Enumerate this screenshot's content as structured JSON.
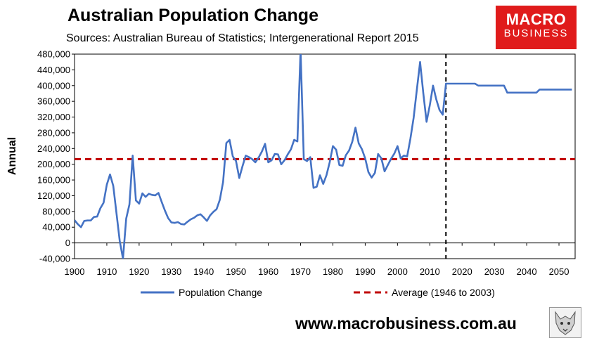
{
  "header": {
    "title": "Australian Population Change",
    "subtitle": "Sources: Australian Bureau of Statistics; Intergenerational Report 2015"
  },
  "logo": {
    "line1": "MACRO",
    "line2": "BUSINESS",
    "color": "#e01b1b"
  },
  "footer": {
    "url": "www.macrobusiness.com.au",
    "icon": "wolf-logo-icon"
  },
  "chart_data": {
    "type": "line",
    "title": "Australian Population Change",
    "xlabel": "",
    "ylabel": "Annual",
    "xlim": [
      1900,
      2055
    ],
    "ylim": [
      -40000,
      480000
    ],
    "x_ticks": [
      1900,
      1910,
      1920,
      1930,
      1940,
      1950,
      1960,
      1970,
      1980,
      1990,
      2000,
      2010,
      2020,
      2030,
      2040,
      2050
    ],
    "y_ticks": [
      -40000,
      0,
      40000,
      80000,
      120000,
      160000,
      200000,
      240000,
      280000,
      320000,
      360000,
      400000,
      440000,
      480000
    ],
    "y_tick_labels": [
      "-40,000",
      "0",
      "40,000",
      "80,000",
      "120,000",
      "160,000",
      "200,000",
      "240,000",
      "280,000",
      "320,000",
      "360,000",
      "400,000",
      "440,000",
      "480,000"
    ],
    "grid": false,
    "legend_position": "bottom",
    "series": [
      {
        "name": "Population Change",
        "color": "#4472c4",
        "style": "solid",
        "x": [
          1900,
          1901,
          1902,
          1903,
          1904,
          1905,
          1906,
          1907,
          1908,
          1909,
          1910,
          1911,
          1912,
          1913,
          1914,
          1915,
          1916,
          1917,
          1918,
          1919,
          1920,
          1921,
          1922,
          1923,
          1924,
          1925,
          1926,
          1927,
          1928,
          1929,
          1930,
          1931,
          1932,
          1933,
          1934,
          1935,
          1936,
          1937,
          1938,
          1939,
          1940,
          1941,
          1942,
          1943,
          1944,
          1945,
          1946,
          1947,
          1948,
          1949,
          1950,
          1951,
          1952,
          1953,
          1954,
          1955,
          1956,
          1957,
          1958,
          1959,
          1960,
          1961,
          1962,
          1963,
          1964,
          1965,
          1966,
          1967,
          1968,
          1969,
          1970,
          1971,
          1972,
          1973,
          1974,
          1975,
          1976,
          1977,
          1978,
          1979,
          1980,
          1981,
          1982,
          1983,
          1984,
          1985,
          1986,
          1987,
          1988,
          1989,
          1990,
          1991,
          1992,
          1993,
          1994,
          1995,
          1996,
          1997,
          1998,
          1999,
          2000,
          2001,
          2002,
          2003,
          2004,
          2005,
          2006,
          2007,
          2008,
          2009,
          2010,
          2011,
          2012,
          2013,
          2014,
          2015,
          2020,
          2024,
          2025,
          2030,
          2033,
          2034,
          2040,
          2043,
          2044,
          2050,
          2054
        ],
        "values": [
          58000,
          48000,
          40000,
          56000,
          57000,
          57000,
          66000,
          67000,
          88000,
          102000,
          148000,
          174000,
          145000,
          75000,
          5000,
          -40000,
          62000,
          98000,
          222000,
          108000,
          100000,
          126000,
          117000,
          125000,
          122000,
          121000,
          127000,
          104000,
          82000,
          63000,
          52000,
          51000,
          53000,
          48000,
          47000,
          54000,
          60000,
          64000,
          70000,
          73000,
          65000,
          56000,
          70000,
          79000,
          86000,
          110000,
          155000,
          254000,
          262000,
          220000,
          208000,
          165000,
          195000,
          222000,
          218000,
          213000,
          205000,
          217000,
          232000,
          252000,
          205000,
          210000,
          226000,
          225000,
          200000,
          210000,
          225000,
          238000,
          262000,
          258000,
          490000,
          213000,
          208000,
          218000,
          140000,
          143000,
          172000,
          150000,
          172000,
          205000,
          246000,
          237000,
          198000,
          196000,
          223000,
          235000,
          257000,
          293000,
          253000,
          238000,
          215000,
          180000,
          166000,
          178000,
          226000,
          215000,
          182000,
          198000,
          214000,
          227000,
          246000,
          215000,
          222000,
          220000,
          265000,
          318000,
          390000,
          460000,
          380000,
          308000,
          350000,
          400000,
          365000,
          338000,
          326000,
          405000,
          405000,
          405000,
          400000,
          400000,
          400000,
          382000,
          382000,
          382000,
          390000,
          390000,
          390000
        ]
      },
      {
        "name": "Average (1946 to 2003)",
        "color": "#c00000",
        "style": "dashed",
        "x": [
          1900,
          2055
        ],
        "values": [
          213000,
          213000
        ]
      }
    ],
    "annotations": [
      {
        "type": "vertical-dashed-line",
        "x": 2015,
        "color": "#000000"
      }
    ]
  }
}
